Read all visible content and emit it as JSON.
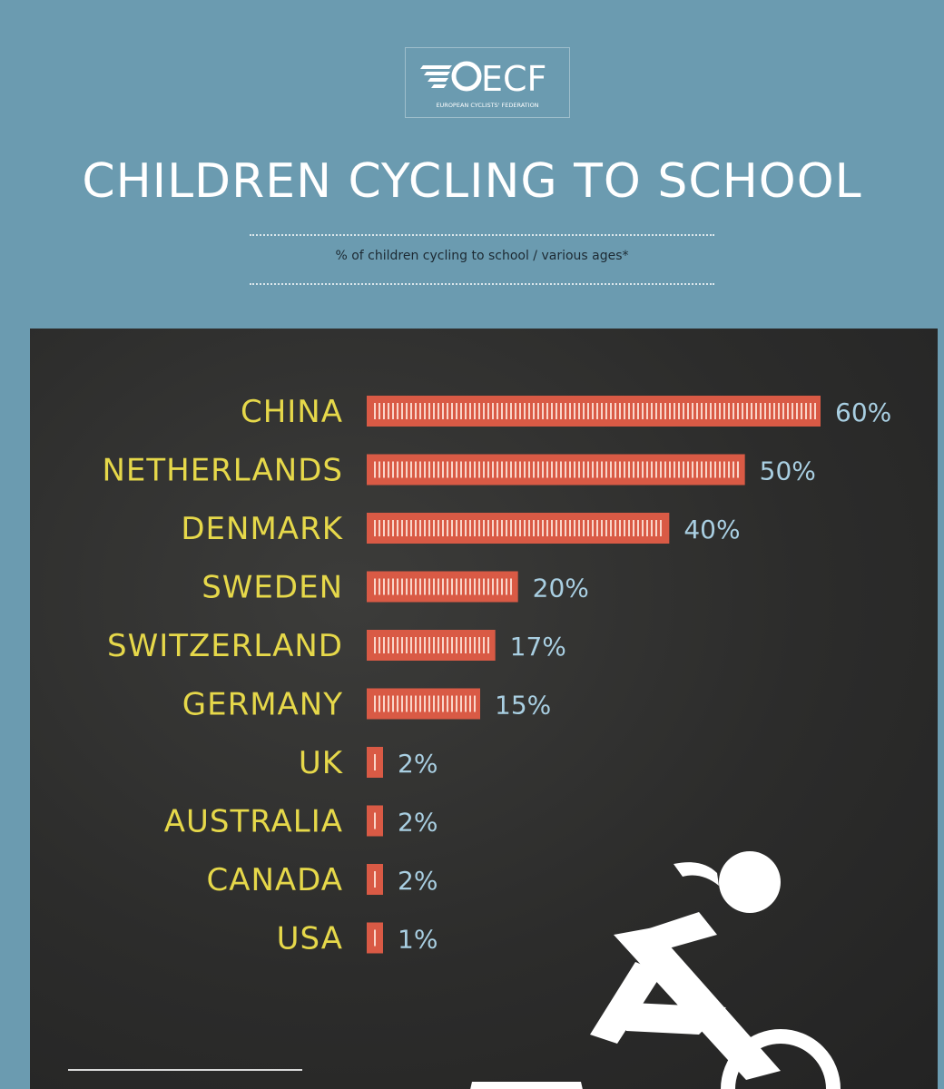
{
  "logo": {
    "name": "ECF",
    "tagline": "EUROPEAN CYCLISTS' FEDERATION"
  },
  "colors": {
    "background": "#6b9bb0",
    "board": "#2f2f2e",
    "bar": "#d95a45",
    "country_label": "#e6d84a",
    "value_label": "#a9cfe2"
  },
  "icons": [
    "cyclist-icon"
  ],
  "chart_data": {
    "type": "bar",
    "orientation": "horizontal",
    "title": "CHILDREN CYCLING TO SCHOOL",
    "subtitle": "% of children cycling to school / various ages*",
    "categories": [
      "CHINA",
      "NETHERLANDS",
      "DENMARK",
      "SWEDEN",
      "SWITZERLAND",
      "GERMANY",
      "UK",
      "AUSTRALIA",
      "CANADA",
      "USA"
    ],
    "values": [
      60,
      50,
      40,
      20,
      17,
      15,
      2,
      2,
      2,
      1
    ],
    "value_labels": [
      "60%",
      "50%",
      "40%",
      "20%",
      "17%",
      "15%",
      "2%",
      "2%",
      "2%",
      "1%"
    ],
    "unit": "%",
    "xlim": [
      0,
      60
    ],
    "grid": false,
    "legend": "none"
  }
}
